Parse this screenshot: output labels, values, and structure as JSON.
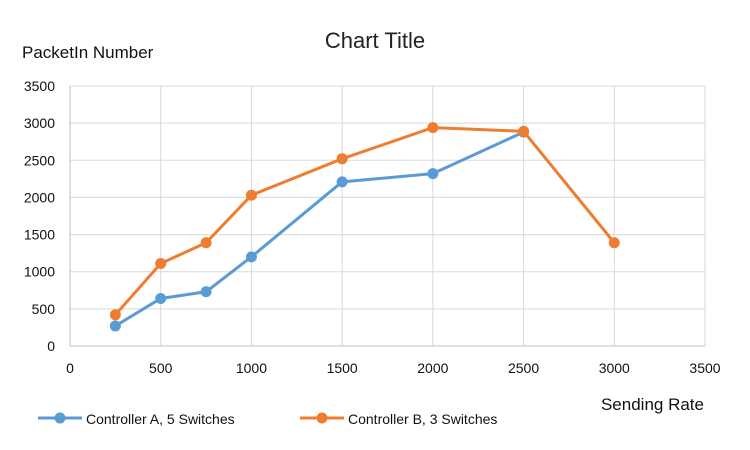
{
  "chart_data": {
    "type": "line",
    "title": "Chart Title",
    "ylabel": "PacketIn Number",
    "xlabel": "Sending Rate",
    "xlim": [
      0,
      3500
    ],
    "ylim": [
      0,
      3500
    ],
    "x_ticks": [
      0,
      500,
      1000,
      1500,
      2000,
      2500,
      3000,
      3500
    ],
    "y_ticks": [
      0,
      500,
      1000,
      1500,
      2000,
      2500,
      3000,
      3500
    ],
    "grid": true,
    "legend_position": "bottom",
    "series": [
      {
        "name": "Controller A, 5 Switches",
        "color": "#5b9bd5",
        "x": [
          250,
          500,
          750,
          1000,
          1500,
          2000,
          2500
        ],
        "y": [
          270,
          640,
          730,
          1200,
          2210,
          2320,
          2880
        ]
      },
      {
        "name": "Controller B, 3 Switches",
        "color": "#ed7d31",
        "x": [
          250,
          500,
          750,
          1000,
          1500,
          2000,
          2500,
          3000
        ],
        "y": [
          420,
          1110,
          1390,
          2030,
          2520,
          2940,
          2890,
          1390
        ]
      }
    ]
  }
}
